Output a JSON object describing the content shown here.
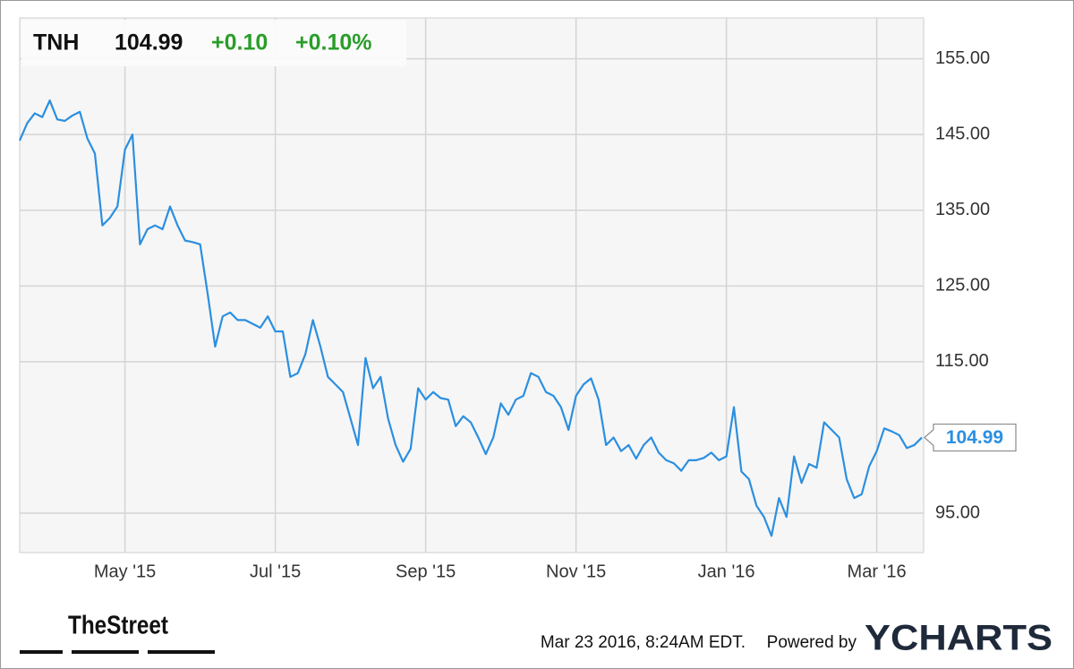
{
  "chart_data": {
    "type": "line",
    "ticker": "TNH",
    "change": "+0.10",
    "change_percent": "+0.10%",
    "timestamp": "Mar 23 2016, 8:24AM EDT.",
    "powered_by": "Powered by",
    "brand": "YCHARTS",
    "source_logo": "TheStreet",
    "categories": [
      null,
      null,
      null,
      null,
      null,
      null,
      null,
      null,
      null,
      null,
      null,
      null,
      null,
      null,
      "May '15",
      null,
      null,
      null,
      null,
      null,
      null,
      null,
      null,
      null,
      null,
      null,
      null,
      null,
      null,
      null,
      null,
      null,
      null,
      null,
      "Jul '15",
      null,
      null,
      null,
      null,
      null,
      null,
      null,
      null,
      null,
      null,
      null,
      null,
      null,
      null,
      null,
      null,
      null,
      null,
      null,
      "Sep '15",
      null,
      null,
      null,
      null,
      null,
      null,
      null,
      null,
      null,
      null,
      null,
      null,
      null,
      null,
      null,
      null,
      null,
      null,
      null,
      "Nov '15",
      null,
      null,
      null,
      null,
      null,
      null,
      null,
      null,
      null,
      null,
      null,
      null,
      null,
      null,
      null,
      null,
      null,
      null,
      null,
      "Jan '16",
      null,
      null,
      null,
      null,
      null,
      null,
      null,
      null,
      null,
      null,
      null,
      null,
      null,
      null,
      null,
      null,
      null,
      null,
      null,
      "Mar '16",
      null,
      null,
      null,
      null,
      null,
      null
    ],
    "series": [
      {
        "name": "TNH",
        "color": "#2b8fe0",
        "values": [
          144.2,
          146.5,
          147.8,
          147.3,
          149.5,
          147,
          146.8,
          147.5,
          148,
          144.5,
          142.5,
          133,
          134,
          135.5,
          143,
          145,
          130.5,
          132.5,
          133,
          132.5,
          135.5,
          133,
          131,
          130.8,
          130.5,
          124,
          117,
          121,
          121.5,
          120.5,
          120.5,
          120,
          119.5,
          121,
          119,
          119,
          113,
          113.5,
          116,
          120.5,
          117,
          113,
          112,
          111,
          107.5,
          104,
          115.5,
          111.5,
          113,
          107.5,
          104,
          101.8,
          103.5,
          111.5,
          110,
          111,
          110.2,
          110,
          106.5,
          107.8,
          107,
          105,
          102.8,
          105,
          109.5,
          108,
          110,
          110.5,
          113.5,
          113,
          111,
          110.5,
          109,
          106,
          110.5,
          112,
          112.8,
          110,
          104,
          105,
          103.2,
          104,
          102.2,
          104,
          105,
          103,
          102,
          101.6,
          100.6,
          102,
          102,
          102.3,
          103,
          102,
          102.5,
          109,
          100.5,
          99.5,
          96,
          94.5,
          92,
          97,
          94.5,
          102.5,
          99,
          101.5,
          101,
          107,
          106,
          105,
          99.5,
          97,
          97.5,
          101.2,
          103.2,
          106.2,
          105.8,
          105.3,
          103.6,
          104,
          104.99
        ]
      }
    ],
    "ylim": [
      89.8,
      160.4
    ],
    "yticks": [
      {
        "value": 95,
        "label": "95.00"
      },
      {
        "value": 115,
        "label": "115.00"
      },
      {
        "value": 125,
        "label": "125.00"
      },
      {
        "value": 135,
        "label": "135.00"
      },
      {
        "value": 145,
        "label": "145.00"
      },
      {
        "value": 155,
        "label": "155.00"
      }
    ],
    "grid": true,
    "change_color": "#2a9d2a"
  }
}
